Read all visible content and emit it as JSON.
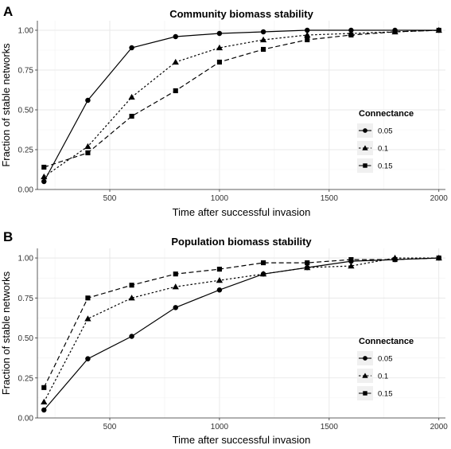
{
  "chart_data": [
    {
      "panel": "A",
      "type": "line",
      "title": "Community biomass stability",
      "xlabel": "Time after successful invasion",
      "ylabel": "Fraction of stable networks",
      "xlim": [
        170,
        2030
      ],
      "ylim": [
        0,
        1.06
      ],
      "xticks": [
        500,
        1000,
        1500,
        2000
      ],
      "yticks": [
        0.0,
        0.25,
        0.5,
        0.75,
        1.0
      ],
      "xtick_labels": [
        "500",
        "1000",
        "1500",
        "2000"
      ],
      "ytick_labels": [
        "0.00",
        "0.25",
        "0.50",
        "0.75",
        "1.00"
      ],
      "grid": true,
      "legend": {
        "title": "Connectance",
        "placement": "right"
      },
      "x": [
        200,
        400,
        600,
        800,
        1000,
        1200,
        1400,
        1600,
        1800,
        2000
      ],
      "series": [
        {
          "name": "0.05",
          "marker": "circle",
          "dash": "solid",
          "values": [
            0.05,
            0.56,
            0.89,
            0.96,
            0.98,
            0.99,
            1.0,
            1.0,
            1.0,
            1.0
          ]
        },
        {
          "name": "0.1",
          "marker": "triangle",
          "dash": "dotted",
          "values": [
            0.08,
            0.27,
            0.58,
            0.8,
            0.89,
            0.94,
            0.97,
            0.98,
            0.99,
            1.0
          ]
        },
        {
          "name": "0.15",
          "marker": "square",
          "dash": "dashed",
          "values": [
            0.14,
            0.23,
            0.46,
            0.62,
            0.8,
            0.88,
            0.94,
            0.97,
            0.99,
            1.0
          ]
        }
      ]
    },
    {
      "panel": "B",
      "type": "line",
      "title": "Population biomass stability",
      "xlabel": "Time after successful invasion",
      "ylabel": "Fraction of stable networks",
      "xlim": [
        170,
        2030
      ],
      "ylim": [
        0,
        1.06
      ],
      "xticks": [
        500,
        1000,
        1500,
        2000
      ],
      "yticks": [
        0.0,
        0.25,
        0.5,
        0.75,
        1.0
      ],
      "xtick_labels": [
        "500",
        "1000",
        "1500",
        "2000"
      ],
      "ytick_labels": [
        "0.00",
        "0.25",
        "0.50",
        "0.75",
        "1.00"
      ],
      "grid": true,
      "legend": {
        "title": "Connectance",
        "placement": "right"
      },
      "x": [
        200,
        400,
        600,
        800,
        1000,
        1200,
        1400,
        1600,
        1800,
        2000
      ],
      "series": [
        {
          "name": "0.05",
          "marker": "circle",
          "dash": "solid",
          "values": [
            0.05,
            0.37,
            0.51,
            0.69,
            0.8,
            0.9,
            0.94,
            0.98,
            0.99,
            1.0
          ]
        },
        {
          "name": "0.1",
          "marker": "triangle",
          "dash": "dotted",
          "values": [
            0.1,
            0.62,
            0.75,
            0.82,
            0.86,
            0.9,
            0.94,
            0.95,
            1.0,
            1.0
          ]
        },
        {
          "name": "0.15",
          "marker": "square",
          "dash": "dashed",
          "values": [
            0.19,
            0.75,
            0.83,
            0.9,
            0.93,
            0.97,
            0.97,
            0.99,
            0.99,
            1.0
          ]
        }
      ]
    }
  ]
}
